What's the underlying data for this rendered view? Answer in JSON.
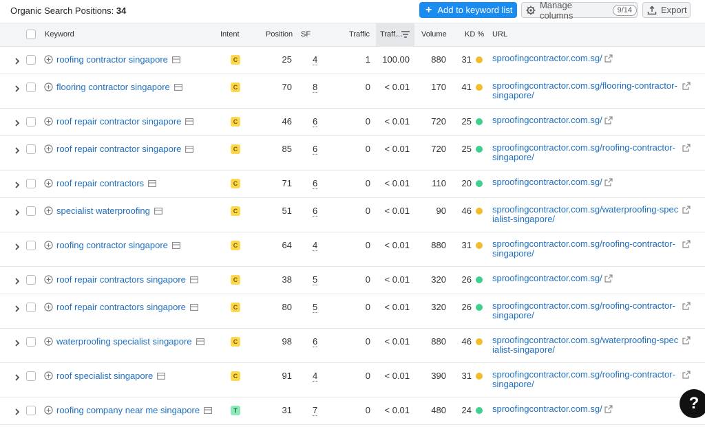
{
  "header": {
    "title_label": "Organic Search Positions:",
    "title_count": "34",
    "add_button": "Add to keyword list",
    "manage_button": "Manage columns",
    "manage_counter": "9/14",
    "export_button": "Export"
  },
  "columns": {
    "keyword": "Keyword",
    "intent": "Intent",
    "position": "Position",
    "sf": "SF",
    "traffic": "Traffic",
    "traffic_pct": "Traff…",
    "volume": "Volume",
    "kd": "KD %",
    "url": "URL"
  },
  "colors": {
    "accent": "#1a8cf0",
    "kd_yellow": "#f2bc2c",
    "kd_green": "#3fcf8e",
    "link": "#1f6fc1"
  },
  "rows": [
    {
      "keyword": "roofing contractor singapore",
      "intent": "C",
      "position": "25",
      "sf": "4",
      "traffic": "1",
      "traffic_pct": "100.00",
      "volume": "880",
      "kd": "31",
      "kd_color": "yellow",
      "url": "sproofingcontractor.com.sg/"
    },
    {
      "keyword": "flooring contractor singapore",
      "intent": "C",
      "position": "70",
      "sf": "8",
      "traffic": "0",
      "traffic_pct": "< 0.01",
      "volume": "170",
      "kd": "41",
      "kd_color": "yellow",
      "url": "sproofingcontractor.com.sg/flooring-contractor-singapore/"
    },
    {
      "keyword": "roof repair contractor singapore",
      "intent": "C",
      "position": "46",
      "sf": "6",
      "traffic": "0",
      "traffic_pct": "< 0.01",
      "volume": "720",
      "kd": "25",
      "kd_color": "green",
      "url": "sproofingcontractor.com.sg/"
    },
    {
      "keyword": "roof repair contractor singapore",
      "intent": "C",
      "position": "85",
      "sf": "6",
      "traffic": "0",
      "traffic_pct": "< 0.01",
      "volume": "720",
      "kd": "25",
      "kd_color": "green",
      "url": "sproofingcontractor.com.sg/roofing-contractor-singapore/"
    },
    {
      "keyword": "roof repair contractors",
      "intent": "C",
      "position": "71",
      "sf": "6",
      "traffic": "0",
      "traffic_pct": "< 0.01",
      "volume": "110",
      "kd": "20",
      "kd_color": "green",
      "url": "sproofingcontractor.com.sg/"
    },
    {
      "keyword": "specialist waterproofing",
      "intent": "C",
      "position": "51",
      "sf": "6",
      "traffic": "0",
      "traffic_pct": "< 0.01",
      "volume": "90",
      "kd": "46",
      "kd_color": "yellow",
      "url": "sproofingcontractor.com.sg/waterproofing-specialist-singapore/"
    },
    {
      "keyword": "roofing contractor singapore",
      "intent": "C",
      "position": "64",
      "sf": "4",
      "traffic": "0",
      "traffic_pct": "< 0.01",
      "volume": "880",
      "kd": "31",
      "kd_color": "yellow",
      "url": "sproofingcontractor.com.sg/roofing-contractor-singapore/"
    },
    {
      "keyword": "roof repair contractors singapore",
      "intent": "C",
      "position": "38",
      "sf": "5",
      "traffic": "0",
      "traffic_pct": "< 0.01",
      "volume": "320",
      "kd": "26",
      "kd_color": "green",
      "url": "sproofingcontractor.com.sg/"
    },
    {
      "keyword": "roof repair contractors singapore",
      "intent": "C",
      "position": "80",
      "sf": "5",
      "traffic": "0",
      "traffic_pct": "< 0.01",
      "volume": "320",
      "kd": "26",
      "kd_color": "green",
      "url": "sproofingcontractor.com.sg/roofing-contractor-singapore/"
    },
    {
      "keyword": "waterproofing specialist singapore",
      "intent": "C",
      "position": "98",
      "sf": "6",
      "traffic": "0",
      "traffic_pct": "< 0.01",
      "volume": "880",
      "kd": "46",
      "kd_color": "yellow",
      "url": "sproofingcontractor.com.sg/waterproofing-specialist-singapore/"
    },
    {
      "keyword": "roof specialist singapore",
      "intent": "C",
      "position": "91",
      "sf": "4",
      "traffic": "0",
      "traffic_pct": "< 0.01",
      "volume": "390",
      "kd": "31",
      "kd_color": "yellow",
      "url": "sproofingcontractor.com.sg/roofing-contractor-singapore/"
    },
    {
      "keyword": "roofing company near me singapore",
      "intent": "T",
      "position": "31",
      "sf": "7",
      "traffic": "0",
      "traffic_pct": "< 0.01",
      "volume": "480",
      "kd": "24",
      "kd_color": "green",
      "url": "sproofingcontractor.com.sg/"
    }
  ],
  "help_button": "?"
}
